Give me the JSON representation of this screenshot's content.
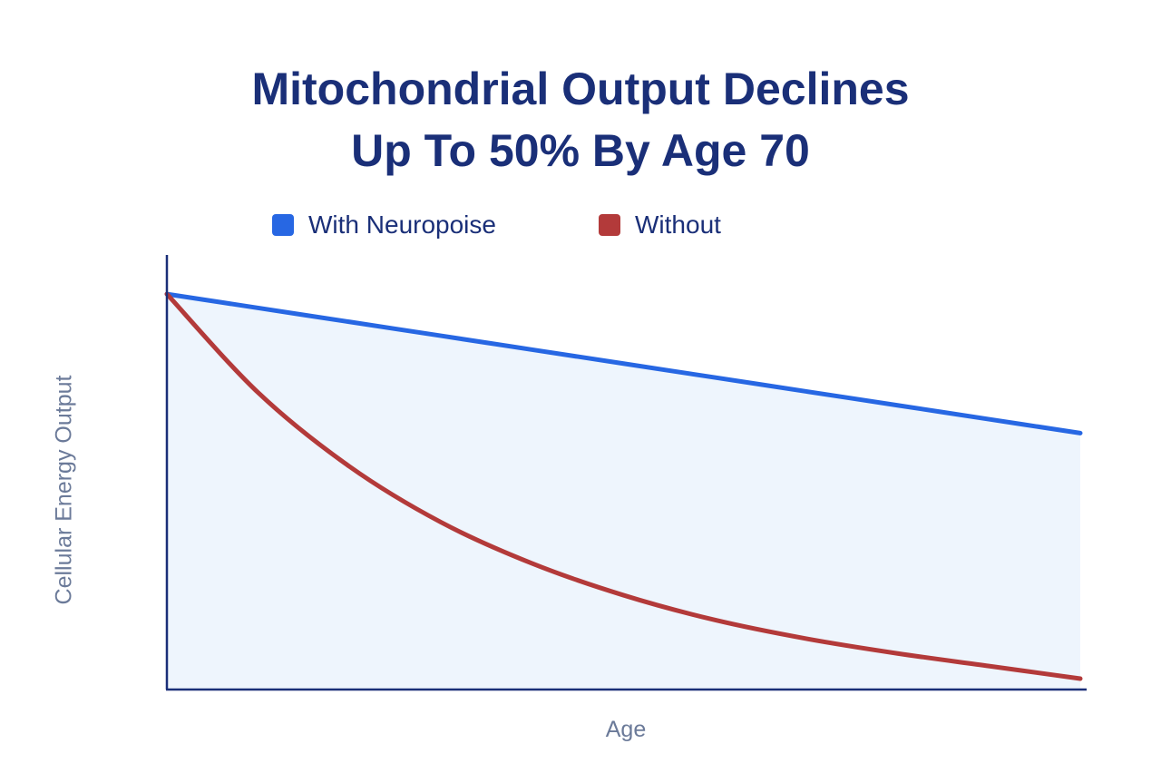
{
  "chart_data": {
    "type": "line",
    "title_lines": [
      "Mitochondrial Output Declines",
      "Up To 50% By Age 70"
    ],
    "xlabel": "Age",
    "ylabel": "Cellular Energy Output",
    "legend_position": "top-center",
    "grid": false,
    "x": [
      0,
      0.1,
      0.2,
      0.3,
      0.4,
      0.5,
      0.6,
      0.7,
      0.8,
      0.9,
      1.0
    ],
    "xlim": [
      0,
      1
    ],
    "ylim": [
      0,
      1
    ],
    "shaded_area_under": "With Neuropoise",
    "series": [
      {
        "name": "With Neuropoise",
        "color": "#2767e3",
        "values": [
          0.91,
          0.878,
          0.846,
          0.814,
          0.782,
          0.75,
          0.718,
          0.686,
          0.654,
          0.622,
          0.59
        ]
      },
      {
        "name": "Without",
        "color": "#b33a3a",
        "values": [
          0.91,
          0.683,
          0.513,
          0.385,
          0.29,
          0.217,
          0.16,
          0.117,
          0.083,
          0.054,
          0.025
        ]
      }
    ],
    "colors": {
      "title": "#1a2f78",
      "axis": "#1a2f78",
      "axis_label": "#6b7a99",
      "area_fill": "#eef5fd"
    }
  }
}
